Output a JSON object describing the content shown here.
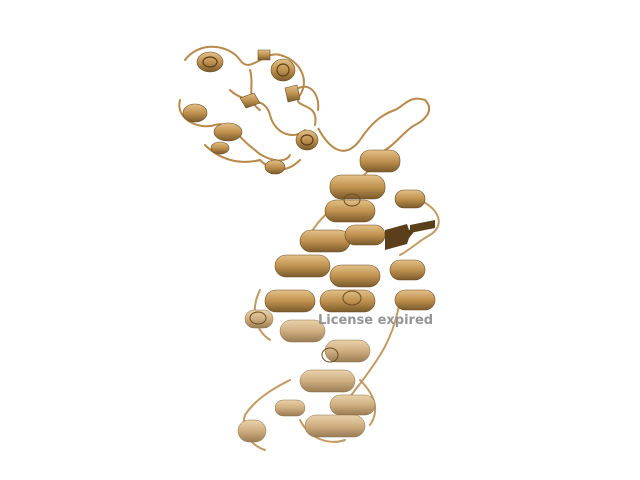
{
  "viewer": {
    "watermark_text": "License expired",
    "colors": {
      "background": "#ffffff",
      "ribbon_light": "#d9b47a",
      "ribbon_mid": "#b8894a",
      "ribbon_dark": "#7a5a2c",
      "watermark": "#8a8a8a"
    }
  }
}
